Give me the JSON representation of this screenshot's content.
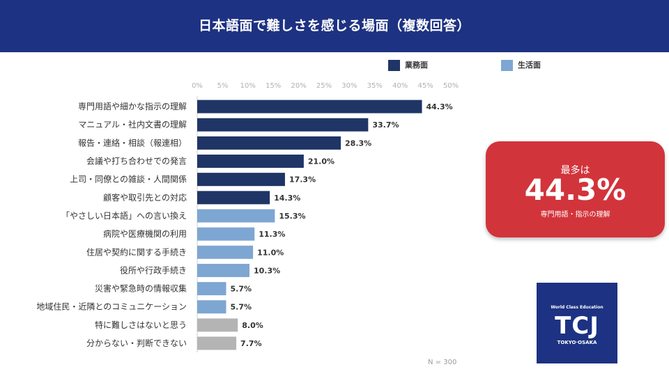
{
  "header": {
    "title": "日本語面で難しさを感じる場面（複数回答）"
  },
  "colors": {
    "header_bg": "#1d3282",
    "work": "#1f3566",
    "life": "#7ea6d2",
    "other": "#b4b4b4",
    "card_bg": "#d2343b",
    "logo_bg": "#1d3282"
  },
  "highlight": {
    "label_top": "最多は",
    "value": "44.3%",
    "caption": "専門用語・指示の理解"
  },
  "logo": {
    "tagline": "World Class Education",
    "mark": "TCJ",
    "city": "TOKYO·OSAKA"
  },
  "note": "N = 300",
  "chart_data": {
    "type": "bar",
    "orientation": "horizontal",
    "x_ticks": [
      "0%",
      "5%",
      "10%",
      "15%",
      "20%",
      "25%",
      "30%",
      "35%",
      "40%",
      "45%",
      "50%"
    ],
    "xlim": [
      0,
      50
    ],
    "unit": "%",
    "grid": false,
    "legend_position": "top-right",
    "legend": [
      {
        "label": "業務面",
        "color": "#1f3566"
      },
      {
        "label": "生活面",
        "color": "#7ea6d2"
      }
    ],
    "categories": [
      "専門用語や細かな指示の理解",
      "マニュアル・社内文書の理解",
      "報告・連絡・相談（報連相）",
      "会議や打ち合わせでの発言",
      "上司・同僚との雑談・人間関係",
      "顧客や取引先との対応",
      "「やさしい日本語」への言い換え",
      "病院や医療機関の利用",
      "住居や契約に関する手続き",
      "役所や行政手続き",
      "災害や緊急時の情報収集",
      "地域住民・近隣とのコミュニケーション",
      "特に難しさはないと思う",
      "分からない・判断できない"
    ],
    "values": [
      44.3,
      33.7,
      28.3,
      21.0,
      17.3,
      14.3,
      15.3,
      11.3,
      11.0,
      10.3,
      5.7,
      5.7,
      8.0,
      7.7
    ],
    "value_labels": [
      "44.3%",
      "33.7%",
      "28.3%",
      "21.0%",
      "17.3%",
      "14.3%",
      "15.3%",
      "11.3%",
      "11.0%",
      "10.3%",
      "5.7%",
      "5.7%",
      "8.0%",
      "7.7%"
    ],
    "groups": [
      "work",
      "work",
      "work",
      "work",
      "work",
      "work",
      "life",
      "life",
      "life",
      "life",
      "life",
      "life",
      "other",
      "other"
    ]
  }
}
